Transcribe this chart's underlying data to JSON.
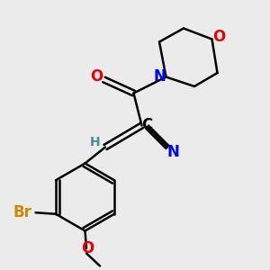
{
  "bg_color": "#ebebeb",
  "atom_colors": {
    "C": "#000000",
    "H": "#4a8a8a",
    "N": "#0000ee",
    "O": "#ee0000",
    "Br": "#cc8800"
  },
  "bond_color": "#000000",
  "bond_width": 1.8,
  "font_size_atoms": 12,
  "font_size_small": 10,
  "figsize": [
    3.0,
    3.0
  ],
  "dpi": 100
}
